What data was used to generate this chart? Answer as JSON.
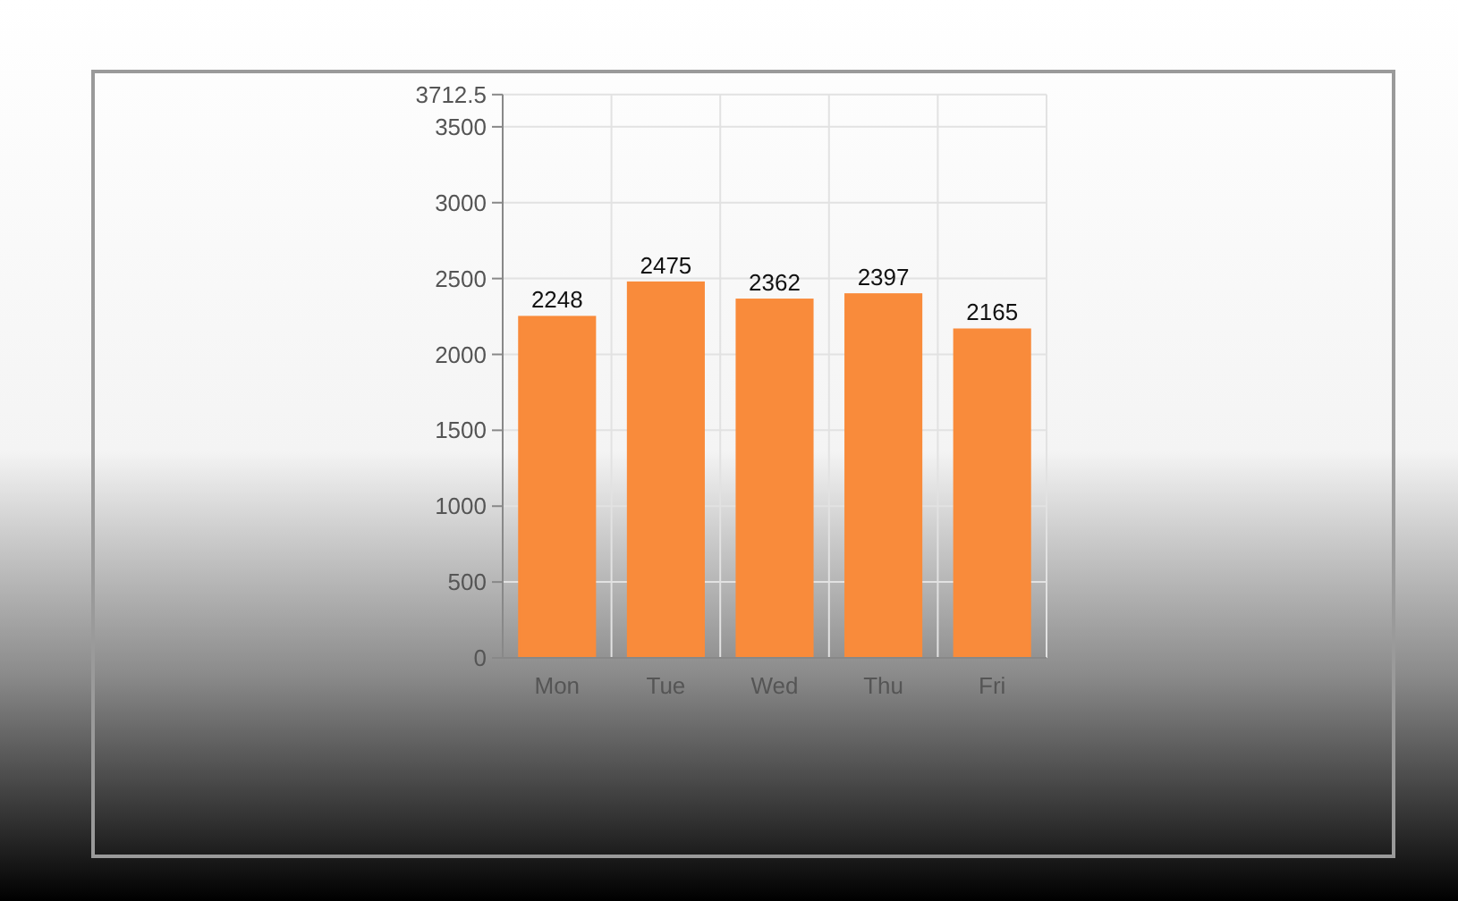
{
  "chart_data": {
    "type": "bar",
    "categories": [
      "Mon",
      "Tue",
      "Wed",
      "Thu",
      "Fri"
    ],
    "values": [
      2248,
      2475,
      2362,
      2397,
      2165
    ],
    "color": "#f98b3b",
    "ylim": [
      0,
      3712.5
    ],
    "yticks": [
      0,
      500,
      1000,
      1500,
      2000,
      2500,
      3000,
      3500,
      3712.5
    ],
    "grid": true,
    "data_labels": true
  }
}
